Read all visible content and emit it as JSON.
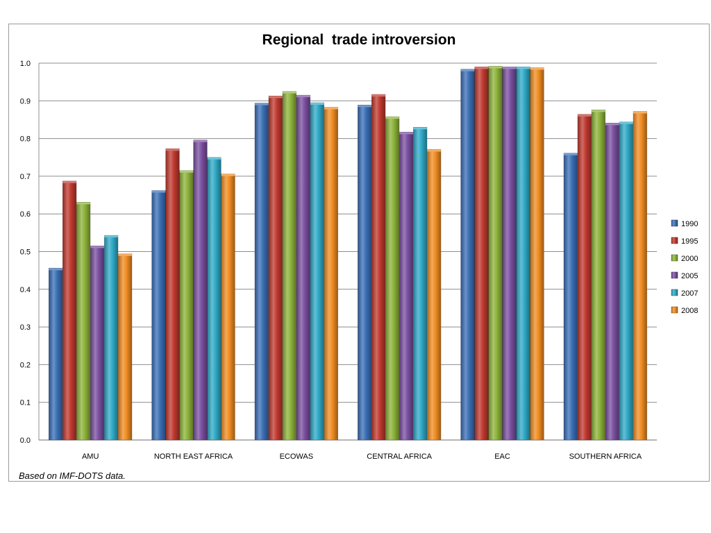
{
  "chart_data": {
    "type": "bar",
    "title": "Regional  trade introversion",
    "xlabel": "",
    "ylabel": "",
    "ylim": [
      0,
      1.0
    ],
    "yticks": [
      "0.0",
      "0.1",
      "0.2",
      "0.3",
      "0.4",
      "0.5",
      "0.6",
      "0.7",
      "0.8",
      "0.9",
      "1.0"
    ],
    "grid": true,
    "legend_position": "right",
    "categories": [
      "AMU",
      "NORTH EAST AFRICA",
      "ECOWAS",
      "CENTRAL AFRICA",
      "EAC",
      "SOUTHERN AFRICA"
    ],
    "series": [
      {
        "name": "1990",
        "color": "#3a6fb6",
        "values": [
          0.456,
          0.662,
          0.894,
          0.889,
          0.984,
          0.761
        ]
      },
      {
        "name": "1995",
        "color": "#c0392f",
        "values": [
          0.687,
          0.773,
          0.913,
          0.917,
          0.99,
          0.864
        ]
      },
      {
        "name": "2000",
        "color": "#8db33a",
        "values": [
          0.631,
          0.715,
          0.925,
          0.858,
          0.992,
          0.876
        ]
      },
      {
        "name": "2005",
        "color": "#7a4fa0",
        "values": [
          0.515,
          0.796,
          0.915,
          0.817,
          0.99,
          0.841
        ]
      },
      {
        "name": "2007",
        "color": "#2fa9c7",
        "values": [
          0.543,
          0.75,
          0.895,
          0.83,
          0.99,
          0.844
        ]
      },
      {
        "name": "2008",
        "color": "#f08c22",
        "values": [
          0.494,
          0.706,
          0.883,
          0.771,
          0.988,
          0.872
        ]
      }
    ]
  },
  "footnote": "Based on IMF-DOTS data."
}
